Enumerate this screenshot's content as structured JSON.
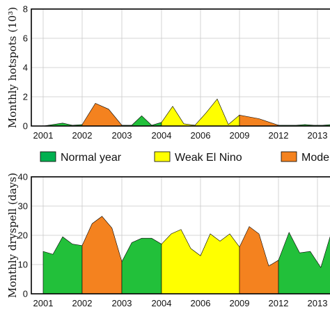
{
  "legend": {
    "items": [
      {
        "label": "Normal year",
        "color": "#00b050"
      },
      {
        "label": "Weak El Nino",
        "color": "#ffff00"
      },
      {
        "label": "Mode",
        "color": "#f4821f"
      }
    ]
  },
  "chart_data": [
    {
      "type": "area",
      "title": "",
      "ylabel": "Monthly hotspots (10³)",
      "xlabel": "",
      "ylim": [
        0,
        8
      ],
      "yticks": [
        "0",
        "2",
        "4",
        "6",
        "8"
      ],
      "xtick_labels": [
        "2001",
        "2002",
        "2003",
        "2004",
        "2006",
        "2009",
        "2012",
        "2013"
      ],
      "grid": true,
      "colors": {
        "normal": "#22c03a",
        "weak": "#ffff00",
        "moderate": "#f4821f"
      },
      "segments": [
        {
          "class": "normal",
          "values": [
            0.0,
            0.1,
            0.2,
            0.05,
            0.1
          ]
        },
        {
          "class": "moderate",
          "values": [
            0.1,
            1.55,
            1.15,
            0.05
          ]
        },
        {
          "class": "normal",
          "values": [
            0.05,
            0.05,
            0.7,
            0.05,
            0.25
          ]
        },
        {
          "class": "weak",
          "values": [
            0.25,
            1.35,
            0.15,
            0.05,
            0.9,
            1.85,
            0.1,
            0.75
          ]
        },
        {
          "class": "moderate",
          "values": [
            0.75,
            0.5,
            0.05
          ]
        },
        {
          "class": "normal",
          "values": [
            0.05,
            0.05,
            0.05,
            0.1,
            0.05,
            0.05,
            0.1
          ]
        }
      ]
    },
    {
      "type": "area",
      "title": "",
      "ylabel": "Monthly dryspell (days)",
      "xlabel": "",
      "ylim": [
        0,
        40
      ],
      "yticks": [
        "0",
        "10",
        "20",
        "30",
        "40"
      ],
      "xtick_labels": [
        "2001",
        "2002",
        "2003",
        "2004",
        "2006",
        "2009",
        "2012",
        "2013"
      ],
      "grid": true,
      "colors": {
        "normal": "#22c03a",
        "weak": "#ffff00",
        "moderate": "#f4821f"
      },
      "segments": [
        {
          "class": "normal",
          "values": [
            14.5,
            13.5,
            19.5,
            17.0,
            16.5
          ]
        },
        {
          "class": "moderate",
          "values": [
            16.5,
            24.0,
            26.5,
            22.5,
            11.0
          ]
        },
        {
          "class": "normal",
          "values": [
            11.0,
            17.5,
            19.0,
            19.0,
            17.0
          ]
        },
        {
          "class": "weak",
          "values": [
            17.0,
            20.5,
            22.0,
            15.5,
            13.0,
            20.5,
            18.0,
            20.5,
            16.0
          ]
        },
        {
          "class": "moderate",
          "values": [
            16.0,
            23.0,
            20.5,
            9.5,
            11.5
          ]
        },
        {
          "class": "normal",
          "values": [
            11.5,
            21.0,
            14.0,
            14.5,
            9.0,
            21.0
          ]
        }
      ]
    }
  ]
}
